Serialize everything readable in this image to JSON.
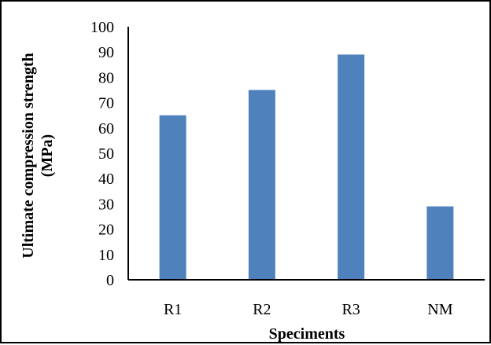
{
  "chart_data": {
    "type": "bar",
    "categories": [
      "R1",
      "R2",
      "R3",
      "NM"
    ],
    "values": [
      65,
      75,
      89,
      29
    ],
    "xlabel": "Speciments",
    "ylabel_line1": "Ultimate compression strength",
    "ylabel_line2": "(MPa)",
    "ylim": [
      0,
      100
    ],
    "yticks": [
      "0",
      "10",
      "20",
      "30",
      "40",
      "50",
      "60",
      "70",
      "80",
      "90",
      "100"
    ],
    "grid": false,
    "legend": "none",
    "bar_color": "#4F81BD",
    "axis_color": "#000000"
  }
}
